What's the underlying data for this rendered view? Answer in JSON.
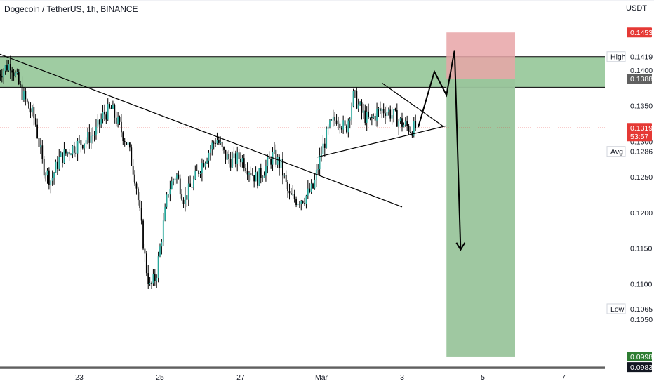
{
  "header": {
    "title": "Dogecoin / TetherUS, 1h, BINANCE",
    "unit": "USDT"
  },
  "colors": {
    "up": "#26a69a",
    "down": "#ef5350",
    "candle": "#000000",
    "zone": "#9fcca2",
    "stop": "#e8a5a7",
    "target": "#9ac59c",
    "price_tag": "#e53935",
    "target_tag": "#2e7d32",
    "line": "#000000"
  },
  "chart_data": {
    "type": "candlestick",
    "title": "Dogecoin / TetherUS, 1h, BINANCE",
    "ylabel": "USDT",
    "ylim": [
      0.0983,
      0.1453
    ],
    "y_ticks": [
      "0.1400",
      "0.1350",
      "0.1300",
      "0.1250",
      "0.1200",
      "0.1150",
      "0.1100",
      "0.1050"
    ],
    "x_ticks": [
      {
        "label": "23",
        "day": 23
      },
      {
        "label": "25",
        "day": 25
      },
      {
        "label": "27",
        "day": 27
      },
      {
        "label": "Mar",
        "day": 29
      },
      {
        "label": "3",
        "day": 31
      },
      {
        "label": "5",
        "day": 33
      },
      {
        "label": "7",
        "day": 35
      }
    ],
    "xlim_day": [
      21.0,
      37.2
    ],
    "price_path": [
      [
        21.0,
        0.1395
      ],
      [
        21.3,
        0.141
      ],
      [
        21.6,
        0.1365
      ],
      [
        21.9,
        0.133
      ],
      [
        22.1,
        0.1265
      ],
      [
        22.3,
        0.1245
      ],
      [
        22.5,
        0.1275
      ],
      [
        22.8,
        0.129
      ],
      [
        23.1,
        0.13
      ],
      [
        23.4,
        0.1312
      ],
      [
        23.6,
        0.1338
      ],
      [
        23.8,
        0.1345
      ],
      [
        24.0,
        0.132
      ],
      [
        24.2,
        0.1295
      ],
      [
        24.4,
        0.1245
      ],
      [
        24.55,
        0.1175
      ],
      [
        24.65,
        0.1125
      ],
      [
        24.75,
        0.1095
      ],
      [
        24.9,
        0.111
      ],
      [
        25.05,
        0.117
      ],
      [
        25.2,
        0.123
      ],
      [
        25.4,
        0.1255
      ],
      [
        25.6,
        0.1218
      ],
      [
        25.8,
        0.124
      ],
      [
        26.0,
        0.1265
      ],
      [
        26.2,
        0.1285
      ],
      [
        26.4,
        0.1305
      ],
      [
        26.6,
        0.128
      ],
      [
        26.8,
        0.1272
      ],
      [
        27.0,
        0.1278
      ],
      [
        27.2,
        0.1262
      ],
      [
        27.4,
        0.1247
      ],
      [
        27.6,
        0.1262
      ],
      [
        27.8,
        0.128
      ],
      [
        28.0,
        0.1265
      ],
      [
        28.2,
        0.1222
      ],
      [
        28.4,
        0.1218
      ],
      [
        28.6,
        0.1222
      ],
      [
        28.8,
        0.1235
      ],
      [
        29.0,
        0.1285
      ],
      [
        29.2,
        0.132
      ],
      [
        29.4,
        0.1335
      ],
      [
        29.6,
        0.1315
      ],
      [
        29.8,
        0.1365
      ],
      [
        30.0,
        0.134
      ],
      [
        30.2,
        0.1328
      ],
      [
        30.4,
        0.1342
      ],
      [
        30.6,
        0.1345
      ],
      [
        30.8,
        0.1335
      ],
      [
        31.0,
        0.1325
      ],
      [
        31.2,
        0.1318
      ],
      [
        31.35,
        0.1319
      ]
    ],
    "levels": {
      "high": 0.1419,
      "high_label": "High",
      "high_value": "0.1419",
      "zone_bottom": 0.1376,
      "stop": 0.1453,
      "stop_value": "0.1453",
      "entry": 0.1388,
      "entry_value": "0.1388",
      "target": 0.0998,
      "target_value": "0.0998",
      "low": 0.1065,
      "low_label": "Low",
      "low_value": "0.1065",
      "avg": 0.1286,
      "avg_label": "Avg",
      "avg_value": "0.1286",
      "bottom": 0.0983,
      "bottom_value": "0.0983",
      "current": 0.1319,
      "current_value": "0.1319",
      "countdown": "53:57"
    },
    "position_box": {
      "day_start": 32.1,
      "day_end": 33.8
    },
    "trendline_down": [
      [
        21.0,
        0.1423
      ],
      [
        31.0,
        0.1208
      ]
    ],
    "triangle_upper": [
      [
        30.5,
        0.1382
      ],
      [
        32.0,
        0.1322
      ]
    ],
    "triangle_lower": [
      [
        28.9,
        0.1278
      ],
      [
        32.1,
        0.1322
      ]
    ],
    "projection_path": [
      [
        31.4,
        0.132
      ],
      [
        31.8,
        0.1398
      ],
      [
        32.1,
        0.1365
      ],
      [
        32.3,
        0.1428
      ],
      [
        32.45,
        0.1148
      ]
    ]
  }
}
